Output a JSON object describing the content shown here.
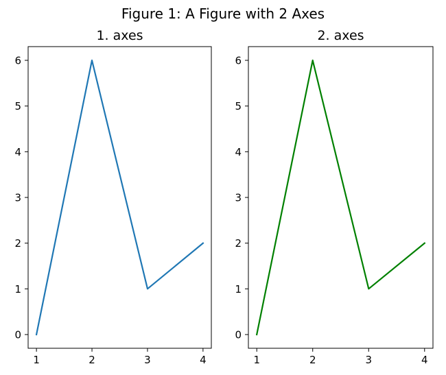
{
  "figure": {
    "title": "Figure 1: A Figure with 2 Axes"
  },
  "chart_data": [
    {
      "type": "line",
      "title": "1. axes",
      "xlabel": "",
      "ylabel": "",
      "x": [
        1,
        2,
        3,
        4
      ],
      "xlim": [
        0.85,
        4.15
      ],
      "ylim": [
        -0.3,
        6.3
      ],
      "xticks": [
        1,
        2,
        3,
        4
      ],
      "yticks": [
        0,
        1,
        2,
        3,
        4,
        5,
        6
      ],
      "grid": false,
      "series": [
        {
          "values": [
            0,
            6,
            1,
            2
          ],
          "color": "#1f77b4"
        }
      ]
    },
    {
      "type": "line",
      "title": "2. axes",
      "xlabel": "",
      "ylabel": "",
      "x": [
        1,
        2,
        3,
        4
      ],
      "xlim": [
        0.85,
        4.15
      ],
      "ylim": [
        -0.3,
        6.3
      ],
      "xticks": [
        1,
        2,
        3,
        4
      ],
      "yticks": [
        0,
        1,
        2,
        3,
        4,
        5,
        6
      ],
      "grid": false,
      "series": [
        {
          "values": [
            0,
            6,
            1,
            2
          ],
          "color": "#008000"
        }
      ]
    }
  ]
}
